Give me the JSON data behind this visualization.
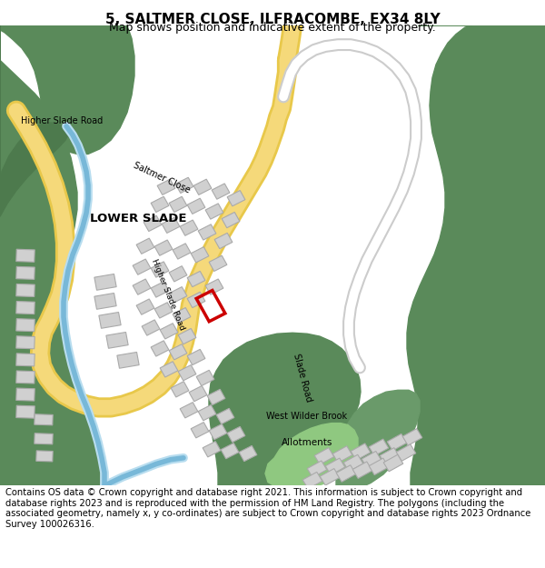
{
  "title": "5, SALTMER CLOSE, ILFRACOMBE, EX34 8LY",
  "subtitle": "Map shows position and indicative extent of the property.",
  "footer": "Contains OS data © Crown copyright and database right 2021. This information is subject to Crown copyright and database rights 2023 and is reproduced with the permission of HM Land Registry. The polygons (including the associated geometry, namely x, y co-ordinates) are subject to Crown copyright and database rights 2023 Ordnance Survey 100026316.",
  "map_bg": "#ffffff",
  "green_color": "#5a8a5a",
  "light_green": "#8ab88a",
  "road_color": "#f5d97a",
  "road_edge": "#e8c84a",
  "water_color": "#a8d4e8",
  "building_color": "#d0d0d0",
  "building_edge": "#aaaaaa",
  "highlight_color": "#cc0000",
  "white_road": "#ffffff",
  "title_fontsize": 11,
  "subtitle_fontsize": 9,
  "footer_fontsize": 7.2
}
